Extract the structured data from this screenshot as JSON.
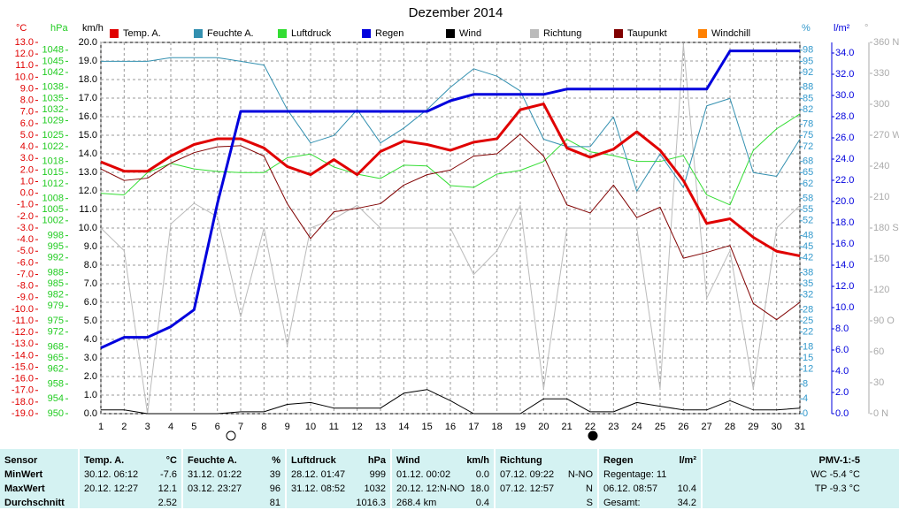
{
  "chart_data": {
    "type": "line",
    "title": "Dezember 2014",
    "x": [
      1,
      2,
      3,
      4,
      5,
      6,
      7,
      8,
      9,
      10,
      11,
      12,
      13,
      14,
      15,
      16,
      17,
      18,
      19,
      20,
      21,
      22,
      23,
      24,
      25,
      26,
      27,
      28,
      29,
      30,
      31
    ],
    "xlim": [
      1,
      31
    ],
    "xticks": [
      1,
      2,
      3,
      4,
      5,
      6,
      7,
      8,
      9,
      10,
      11,
      12,
      13,
      14,
      15,
      16,
      17,
      18,
      19,
      20,
      21,
      22,
      23,
      24,
      25,
      26,
      27,
      28,
      29,
      30,
      31
    ],
    "grid": true,
    "axes": [
      {
        "unit": "°C",
        "color": "#e00000",
        "lim": [
          -19,
          13
        ],
        "ticks": [
          {
            "value": 13,
            "label": "13.0"
          },
          {
            "value": 12,
            "label": "12.0"
          },
          {
            "value": 11,
            "label": "11.0"
          },
          {
            "value": 10,
            "label": "10.0"
          },
          {
            "value": 9,
            "label": "9.0"
          },
          {
            "value": 8,
            "label": "8.0"
          },
          {
            "value": 7,
            "label": "7.0"
          },
          {
            "value": 6,
            "label": "6.0"
          },
          {
            "value": 5,
            "label": "5.0"
          },
          {
            "value": 4,
            "label": "4.0"
          },
          {
            "value": 3,
            "label": "3.0"
          },
          {
            "value": 2,
            "label": "2.0"
          },
          {
            "value": 1,
            "label": "1.0"
          },
          {
            "value": 0,
            "label": "0.0"
          },
          {
            "value": -1,
            "label": "-1.0"
          },
          {
            "value": -2,
            "label": "-2.0"
          },
          {
            "value": -3,
            "label": "-3.0"
          },
          {
            "value": -4,
            "label": "-4.0"
          },
          {
            "value": -5,
            "label": "-5.0"
          },
          {
            "value": -6,
            "label": "-6.0"
          },
          {
            "value": -7,
            "label": "-7.0"
          },
          {
            "value": -8,
            "label": "-8.0"
          },
          {
            "value": -9,
            "label": "-9.0"
          },
          {
            "value": -10,
            "label": "-10.0"
          },
          {
            "value": -11,
            "label": "-11.0"
          },
          {
            "value": -12,
            "label": "-12.0"
          },
          {
            "value": -13,
            "label": "-13.0"
          },
          {
            "value": -14,
            "label": "-14.0"
          },
          {
            "value": -15,
            "label": "-15.0"
          },
          {
            "value": -16,
            "label": "-16.0"
          },
          {
            "value": -17,
            "label": "-17.0"
          },
          {
            "value": -18,
            "label": "-18.0"
          },
          {
            "value": -19,
            "label": "-19.0"
          }
        ]
      },
      {
        "unit": "hPa",
        "color": "#22cc22",
        "lim": [
          950,
          1050.1
        ],
        "ticks": [
          1048,
          1045,
          1042,
          1038,
          1035,
          1032,
          1029,
          1025,
          1022,
          1018,
          1015,
          1012,
          1008,
          1005,
          1002,
          998,
          995,
          992,
          988,
          985,
          982,
          979,
          975,
          972,
          968,
          965,
          962,
          958,
          954,
          950
        ]
      },
      {
        "unit": "km/h",
        "color": "#000000",
        "lim": [
          0,
          20
        ],
        "ticks": [
          {
            "value": 20,
            "label": "20.0"
          },
          {
            "value": 19,
            "label": "19.0"
          },
          {
            "value": 18,
            "label": "18.0"
          },
          {
            "value": 17,
            "label": "17.0"
          },
          {
            "value": 16,
            "label": "16.0"
          },
          {
            "value": 15,
            "label": "15.0"
          },
          {
            "value": 14,
            "label": "14.0"
          },
          {
            "value": 13,
            "label": "13.0"
          },
          {
            "value": 12,
            "label": "12.0"
          },
          {
            "value": 11,
            "label": "11.0"
          },
          {
            "value": 10,
            "label": "10.0"
          },
          {
            "value": 9,
            "label": "9.0"
          },
          {
            "value": 8,
            "label": "8.0"
          },
          {
            "value": 7,
            "label": "7.0"
          },
          {
            "value": 6,
            "label": "6.0"
          },
          {
            "value": 5,
            "label": "5.0"
          },
          {
            "value": 4,
            "label": "4.0"
          },
          {
            "value": 3,
            "label": "3.0"
          },
          {
            "value": 2,
            "label": "2.0"
          },
          {
            "value": 1,
            "label": "1.0"
          },
          {
            "value": 0,
            "label": "0.0"
          }
        ]
      },
      {
        "unit": "%",
        "color": "#3399cc",
        "lim": [
          0,
          100.1
        ],
        "ticks": [
          98,
          95,
          92,
          88,
          85,
          82,
          78,
          75,
          72,
          68,
          65,
          62,
          58,
          55,
          52,
          48,
          45,
          42,
          38,
          35,
          32,
          28,
          25,
          22,
          18,
          15,
          12,
          8,
          4,
          0
        ]
      },
      {
        "unit": "l/m²",
        "color": "#0000dd",
        "lim": [
          0,
          35
        ],
        "ticks": [
          {
            "value": 34,
            "label": "34.0"
          },
          {
            "value": 32,
            "label": "32.0"
          },
          {
            "value": 30,
            "label": "30.0"
          },
          {
            "value": 28,
            "label": "28.0"
          },
          {
            "value": 26,
            "label": "26.0"
          },
          {
            "value": 24,
            "label": "24.0"
          },
          {
            "value": 22,
            "label": "22.0"
          },
          {
            "value": 20,
            "label": "20.0"
          },
          {
            "value": 18,
            "label": "18.0"
          },
          {
            "value": 16,
            "label": "16.0"
          },
          {
            "value": 14,
            "label": "14.0"
          },
          {
            "value": 12,
            "label": "12.0"
          },
          {
            "value": 10,
            "label": "10.0"
          },
          {
            "value": 8,
            "label": "8.0"
          },
          {
            "value": 6,
            "label": "6.0"
          },
          {
            "value": 4,
            "label": "4.0"
          },
          {
            "value": 2,
            "label": "2.0"
          },
          {
            "value": 0,
            "label": "0.0"
          }
        ]
      },
      {
        "unit": "°",
        "color": "#aaaaaa",
        "lim": [
          0,
          360
        ],
        "ticks": [
          {
            "value": 360,
            "label": "360 N"
          },
          330,
          300,
          {
            "value": 270,
            "label": "270 W"
          },
          240,
          210,
          {
            "value": 180,
            "label": "180 S"
          },
          150,
          120,
          {
            "value": 90,
            "label": "90 O"
          },
          60,
          30,
          {
            "value": 0,
            "label": "0 N"
          }
        ]
      }
    ],
    "series": [
      {
        "name": "Temp. A.",
        "color": "#e00000",
        "axis": 0,
        "line_width": 3,
        "values": [
          2.7,
          1.9,
          1.9,
          3.2,
          4.2,
          4.7,
          4.7,
          3.9,
          2.3,
          1.6,
          2.9,
          1.6,
          3.6,
          4.5,
          4.2,
          3.7,
          4.4,
          4.7,
          7.2,
          7.7,
          3.9,
          3.1,
          3.8,
          5.3,
          3.7,
          1.1,
          -2.6,
          -2.2,
          -3.8,
          -5.0,
          -5.4
        ]
      },
      {
        "name": "Feuchte A.",
        "color": "#3390b0",
        "axis": 3,
        "line_width": 1,
        "values": [
          95,
          95,
          95,
          96,
          96,
          96,
          95,
          94,
          82,
          73,
          75,
          82,
          73,
          77,
          82,
          88,
          93,
          91,
          87,
          74,
          72,
          72,
          80,
          60,
          70,
          61,
          83,
          85,
          65,
          64,
          74
        ]
      },
      {
        "name": "Luftdruck",
        "color": "#33dd33",
        "axis": 1,
        "line_width": 1,
        "values": [
          1009.4,
          1009,
          1015,
          1017.5,
          1016,
          1015.3,
          1015,
          1015,
          1019,
          1020,
          1016.5,
          1014.6,
          1013.4,
          1017,
          1016.8,
          1011.5,
          1011,
          1014.6,
          1015.6,
          1018,
          1024,
          1020.6,
          1019.6,
          1018,
          1018,
          1019.6,
          1009,
          1006.3,
          1021,
          1026.8,
          1030.8
        ]
      },
      {
        "name": "Regen",
        "color": "#0000dd",
        "axis": 4,
        "line_width": 3,
        "values": [
          6.2,
          7.2,
          7.2,
          8.2,
          9.8,
          19.8,
          28.5,
          28.5,
          28.5,
          28.5,
          28.5,
          28.5,
          28.5,
          28.5,
          28.5,
          29.5,
          30.1,
          30.1,
          30.1,
          30.1,
          30.6,
          30.6,
          30.6,
          30.6,
          30.6,
          30.6,
          30.6,
          34.2,
          34.2,
          34.2,
          34.2
        ]
      },
      {
        "name": "Wind",
        "color": "#000000",
        "axis": 2,
        "line_width": 1,
        "values": [
          0.2,
          0.2,
          0,
          0,
          0,
          0,
          0.1,
          0.1,
          0.5,
          0.6,
          0.3,
          0.3,
          0.3,
          1.1,
          1.3,
          0.7,
          0,
          0,
          0,
          0.8,
          0.8,
          0.1,
          0.1,
          0.6,
          0.4,
          0.2,
          0.2,
          0.7,
          0.2,
          0.2,
          0.3
        ]
      },
      {
        "name": "Richtung",
        "color": "#bbbbbb",
        "axis": 5,
        "line_width": 1,
        "values": [
          180,
          158,
          0,
          184,
          204,
          191,
          94,
          180,
          66,
          180,
          189,
          202,
          180,
          180,
          180,
          180,
          135,
          158,
          202,
          24,
          180,
          180,
          180,
          180,
          24,
          358,
          112,
          158,
          24,
          180,
          202
        ]
      },
      {
        "name": "Taupunkt",
        "color": "#800000",
        "axis": 0,
        "line_width": 1,
        "values": [
          2.1,
          1.1,
          1.3,
          2.6,
          3.5,
          4.0,
          4.1,
          3.2,
          -0.9,
          -3.9,
          -1.6,
          -1.3,
          -0.9,
          0.7,
          1.6,
          2.0,
          3.2,
          3.4,
          5.1,
          3.2,
          -1.0,
          -1.7,
          0.7,
          -2.1,
          -1.2,
          -5.6,
          -5.1,
          -4.5,
          -9.5,
          -10.9,
          -9.4
        ]
      },
      {
        "name": "Windchill",
        "color": "#ff8000",
        "axis": 0,
        "line_width": 1,
        "values": [
          null,
          null,
          null,
          null,
          null,
          null,
          null,
          null,
          null,
          null,
          null,
          null,
          null,
          null,
          null,
          null,
          null,
          null,
          null,
          null,
          null,
          null,
          null,
          null,
          null,
          null,
          null,
          null,
          null,
          null,
          null
        ]
      }
    ]
  },
  "table": {
    "sensor": {
      "title": "Sensor",
      "rows": [
        "MinWert",
        "MaxWert",
        "Durchschnitt"
      ]
    },
    "columns": [
      {
        "title": "Temp. A.",
        "unit": "°C",
        "rows": [
          {
            "l": "30.12. 06:12",
            "r": "-7.6"
          },
          {
            "l": "20.12. 12:27",
            "r": "12.1"
          },
          {
            "r": "2.52"
          }
        ]
      },
      {
        "title": "Feuchte A.",
        "unit": "%",
        "rows": [
          {
            "l": "31.12. 01:22",
            "r": "39"
          },
          {
            "l": "03.12. 23:27",
            "r": "96"
          },
          {
            "r": "81"
          }
        ]
      },
      {
        "title": "Luftdruck",
        "unit": "hPa",
        "rows": [
          {
            "l": "28.12. 01:47",
            "r": "999"
          },
          {
            "l": "31.12. 08:52",
            "r": "1032"
          },
          {
            "r": "1016.3"
          }
        ]
      },
      {
        "title": "Wind",
        "unit": "km/h",
        "rows": [
          {
            "l": "01.12. 00:02",
            "r": "0.0"
          },
          {
            "l": "20.12. 12:N-NO",
            "r": "18.0"
          },
          {
            "l": "268.4 km",
            "r": "0.4"
          }
        ]
      },
      {
        "title": "Richtung",
        "rows": [
          {
            "l": "07.12. 09:22",
            "r": "N-NO"
          },
          {
            "l": "07.12. 12:57",
            "r": "N"
          },
          {
            "r": "S"
          }
        ]
      },
      {
        "title": "Regen",
        "unit": "l/m²",
        "rows": [
          {
            "l": "Regentage: 11"
          },
          {
            "l": "06.12. 08:57",
            "r": "10.4"
          },
          {
            "l": "Gesamt:",
            "r": "34.2"
          }
        ]
      }
    ],
    "pmv": {
      "title": "PMV-1:-5",
      "rows": [
        "WC -5.4 °C",
        "TP -9.3 °C"
      ]
    }
  }
}
